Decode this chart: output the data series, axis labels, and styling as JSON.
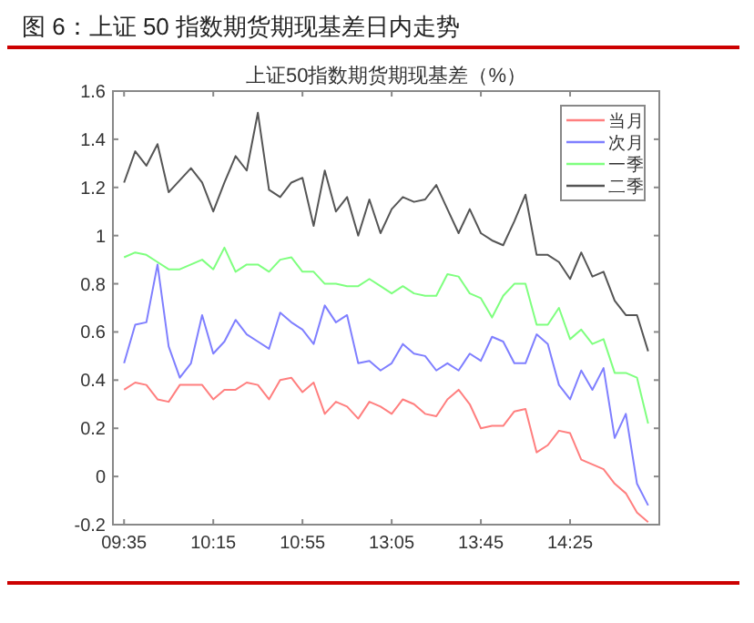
{
  "chart_data": {
    "type": "line",
    "title": "图 6：上证 50 指数期货期现基差日内走势",
    "subtitle": "上证50指数期货期现基差（%）",
    "categories": [
      "09:35",
      null,
      null,
      null,
      null,
      null,
      null,
      null,
      "10:15",
      null,
      null,
      null,
      null,
      null,
      null,
      null,
      "10:55",
      null,
      null,
      null,
      null,
      null,
      null,
      null,
      "13:05",
      null,
      null,
      null,
      null,
      null,
      null,
      null,
      "13:45",
      null,
      null,
      null,
      null,
      null,
      null,
      null,
      "14:25",
      null,
      null,
      null,
      null,
      null,
      null,
      null
    ],
    "ylim": [
      -0.2,
      1.6
    ],
    "yticks": [
      -0.2,
      0,
      0.2,
      0.4,
      0.6,
      0.8,
      1,
      1.2,
      1.4,
      1.6
    ],
    "legend": "top right",
    "marker": "none",
    "line_style": "solid",
    "series": [
      {
        "name": "当月",
        "color": "#ff7f7f",
        "values": [
          0.36,
          0.39,
          0.38,
          0.32,
          0.31,
          0.38,
          0.38,
          0.38,
          0.32,
          0.36,
          0.36,
          0.39,
          0.38,
          0.32,
          0.4,
          0.41,
          0.35,
          0.39,
          0.26,
          0.31,
          0.29,
          0.24,
          0.31,
          0.29,
          0.26,
          0.32,
          0.3,
          0.26,
          0.25,
          0.32,
          0.36,
          0.3,
          0.2,
          0.21,
          0.21,
          0.27,
          0.28,
          0.1,
          0.13,
          0.19,
          0.18,
          0.07,
          0.05,
          0.03,
          -0.03,
          -0.07,
          -0.15,
          -0.19
        ]
      },
      {
        "name": "次月",
        "color": "#7f7fff",
        "values": [
          0.47,
          0.63,
          0.64,
          0.88,
          0.54,
          0.41,
          0.47,
          0.67,
          0.51,
          0.56,
          0.65,
          0.59,
          0.56,
          0.53,
          0.68,
          0.64,
          0.61,
          0.55,
          0.71,
          0.64,
          0.67,
          0.47,
          0.48,
          0.44,
          0.47,
          0.55,
          0.51,
          0.5,
          0.44,
          0.47,
          0.44,
          0.51,
          0.48,
          0.58,
          0.56,
          0.47,
          0.47,
          0.59,
          0.55,
          0.38,
          0.32,
          0.44,
          0.36,
          0.45,
          0.16,
          0.26,
          -0.03,
          -0.12
        ]
      },
      {
        "name": "一季",
        "color": "#7fff7f",
        "values": [
          0.91,
          0.93,
          0.92,
          0.89,
          0.86,
          0.86,
          0.88,
          0.9,
          0.86,
          0.95,
          0.85,
          0.88,
          0.88,
          0.85,
          0.9,
          0.91,
          0.85,
          0.85,
          0.8,
          0.8,
          0.79,
          0.79,
          0.82,
          0.79,
          0.76,
          0.79,
          0.76,
          0.75,
          0.75,
          0.84,
          0.83,
          0.76,
          0.74,
          0.66,
          0.75,
          0.8,
          0.8,
          0.63,
          0.63,
          0.7,
          0.57,
          0.61,
          0.55,
          0.57,
          0.43,
          0.43,
          0.41,
          0.22
        ]
      },
      {
        "name": "二季",
        "color": "#555555",
        "values": [
          1.22,
          1.35,
          1.29,
          1.38,
          1.18,
          1.23,
          1.28,
          1.22,
          1.1,
          1.22,
          1.33,
          1.27,
          1.51,
          1.19,
          1.16,
          1.22,
          1.24,
          1.04,
          1.27,
          1.1,
          1.16,
          1.0,
          1.15,
          1.01,
          1.11,
          1.16,
          1.14,
          1.15,
          1.21,
          1.11,
          1.01,
          1.11,
          1.01,
          0.98,
          0.96,
          1.06,
          1.17,
          0.92,
          0.92,
          0.89,
          0.82,
          0.93,
          0.83,
          0.85,
          0.73,
          0.67,
          0.67,
          0.52
        ]
      }
    ]
  }
}
